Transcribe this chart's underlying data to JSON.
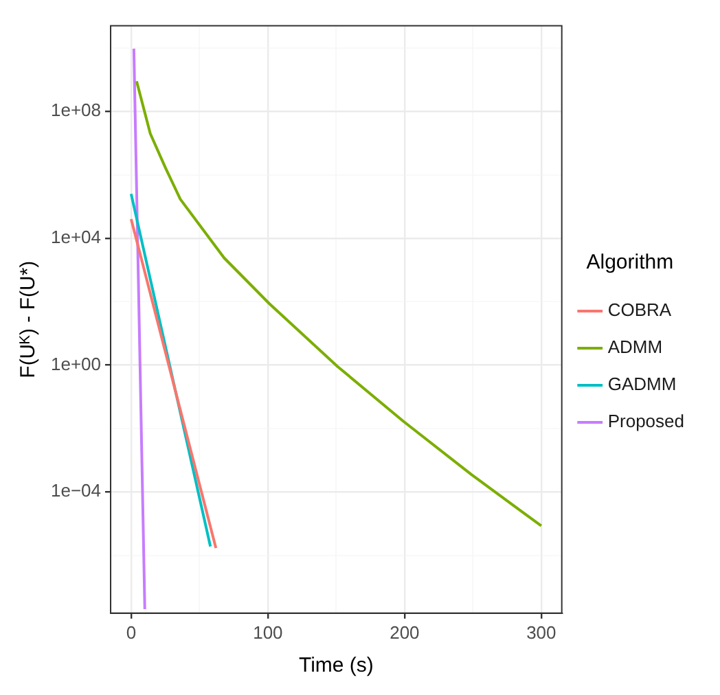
{
  "chart_data": {
    "type": "line",
    "xlabel": "Time (s)",
    "ylabel": "F(Uᴷ) - F(U*)",
    "legend_title": "Algorithm",
    "legend": "right",
    "grid": true,
    "log": "y",
    "line_style": "solid",
    "marker": "none",
    "xlim": [
      -15,
      315
    ],
    "xticks": [
      0,
      {
        "value": 50,
        "label": null
      },
      100,
      {
        "value": 150,
        "label": null
      },
      200,
      {
        "value": 250,
        "label": null
      },
      300
    ],
    "ylim": [
      1.5e-08,
      50000000000.0
    ],
    "yticks": [
      {
        "value": 1e-06,
        "label": null
      },
      {
        "value": 0.0001,
        "label": "1e−04"
      },
      {
        "value": 0.01,
        "label": null
      },
      {
        "value": 1,
        "label": "1e+00"
      },
      {
        "value": 100,
        "label": null
      },
      {
        "value": 10000.0,
        "label": "1e+04"
      },
      {
        "value": 1000000.0,
        "label": null
      },
      {
        "value": 100000000.0,
        "label": "1e+08"
      },
      {
        "value": 10000000000.0,
        "label": null
      }
    ],
    "series": [
      {
        "name": "COBRA",
        "color": "#f8766d",
        "x": [
          0,
          62
        ],
        "values": [
          40000.0,
          1.7e-06
        ]
      },
      {
        "name": "ADMM",
        "color": "#7cae00",
        "x": [
          4,
          14,
          25,
          36,
          68,
          101,
          151,
          199,
          249,
          300
        ],
        "values": [
          900000000.0,
          20000000.0,
          1700000.0,
          170000.0,
          2400,
          87,
          0.9,
          0.017,
          0.00035,
          8.5e-06
        ]
      },
      {
        "name": "GADMM",
        "color": "#00bfc4",
        "x": [
          0,
          58
        ],
        "values": [
          250000.0,
          1.9e-06
        ]
      },
      {
        "name": "Proposed",
        "color": "#c77cff",
        "x": [
          2,
          10
        ],
        "values": [
          9500000000.0,
          2e-08
        ]
      }
    ]
  }
}
